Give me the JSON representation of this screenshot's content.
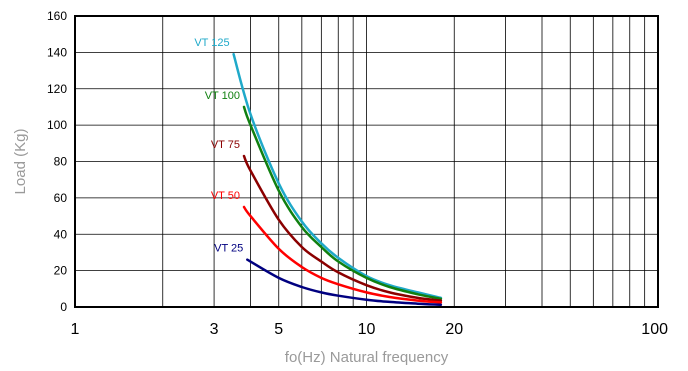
{
  "chart_data": {
    "type": "line",
    "title": "",
    "xlabel": "fo(Hz) Natural frequency",
    "ylabel": "Load (Kg)",
    "x_scale": "log",
    "xlim": [
      1,
      100
    ],
    "ylim": [
      0,
      160
    ],
    "x_ticks": [
      1,
      3,
      5,
      10,
      20,
      100
    ],
    "x_tick_labels": [
      "1",
      "3",
      "5",
      "10",
      "20",
      "100"
    ],
    "y_ticks": [
      0,
      20,
      40,
      60,
      80,
      100,
      120,
      140,
      160
    ],
    "y_tick_labels": [
      "0",
      "20",
      "40",
      "60",
      "80",
      "100",
      "120",
      "140",
      "160"
    ],
    "grid": true,
    "legend": "none (series labelled directly on curves)",
    "series": [
      {
        "name": "VT 125",
        "color": "#1fa9c9",
        "x": [
          3.5,
          4,
          5,
          6,
          7,
          8,
          10,
          12,
          15,
          18
        ],
        "y": [
          139,
          106,
          68,
          47,
          35,
          27,
          17,
          12,
          8,
          5
        ]
      },
      {
        "name": "VT 100",
        "color": "#108010",
        "x": [
          3.8,
          4,
          5,
          6,
          7,
          8,
          10,
          12,
          15,
          18
        ],
        "y": [
          110,
          100,
          64,
          44,
          33,
          25,
          16,
          11,
          7,
          4.5
        ]
      },
      {
        "name": "VT 75",
        "color": "#8b0000",
        "x": [
          3.8,
          4,
          5,
          6,
          7,
          8,
          10,
          12,
          15,
          18
        ],
        "y": [
          83,
          75,
          48,
          33,
          25,
          19,
          12,
          8,
          5,
          3.5
        ]
      },
      {
        "name": "VT 50",
        "color": "#ff0000",
        "x": [
          3.8,
          4,
          5,
          6,
          7,
          8,
          10,
          12,
          15,
          18
        ],
        "y": [
          55,
          50,
          32,
          22,
          16,
          12.5,
          8,
          5.5,
          3.5,
          2.5
        ]
      },
      {
        "name": "VT 25",
        "color": "#000080",
        "x": [
          3.9,
          5,
          6,
          7,
          8,
          10,
          12,
          15,
          18
        ],
        "y": [
          26,
          16,
          11,
          8,
          6.2,
          4,
          2.8,
          1.8,
          1.2
        ]
      }
    ]
  }
}
